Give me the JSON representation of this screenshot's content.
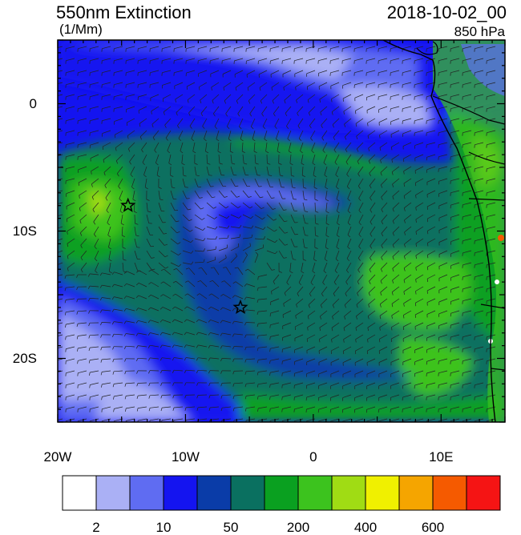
{
  "header": {
    "title": "550nm Extinction",
    "units": "(1/Mm)",
    "datetime": "2018-10-02_00",
    "level": "850 hPa"
  },
  "map": {
    "lon_range": [
      -20,
      15
    ],
    "lat_range": [
      -25,
      5
    ],
    "lon_ticks": [
      {
        "value": -20,
        "label": "20W"
      },
      {
        "value": -10,
        "label": "10W"
      },
      {
        "value": 0,
        "label": "0"
      },
      {
        "value": 10,
        "label": "10E"
      }
    ],
    "lat_ticks": [
      {
        "value": 0,
        "label": "0"
      },
      {
        "value": -10,
        "label": "10S"
      },
      {
        "value": -20,
        "label": "20S"
      }
    ],
    "markers": [
      {
        "name": "star",
        "lon": -14.5,
        "lat": -8.0
      },
      {
        "name": "star",
        "lon": -5.7,
        "lat": -16.0
      }
    ]
  },
  "colorbar": {
    "colors": [
      "#ffffff",
      "#aab0f5",
      "#5f6cf2",
      "#1414f0",
      "#0a3ca8",
      "#0a7060",
      "#0aa020",
      "#3cc31e",
      "#a0dc14",
      "#f0f000",
      "#f5a500",
      "#f55a00",
      "#f51414"
    ],
    "labels": [
      "2",
      "10",
      "50",
      "200",
      "400",
      "600"
    ]
  }
}
